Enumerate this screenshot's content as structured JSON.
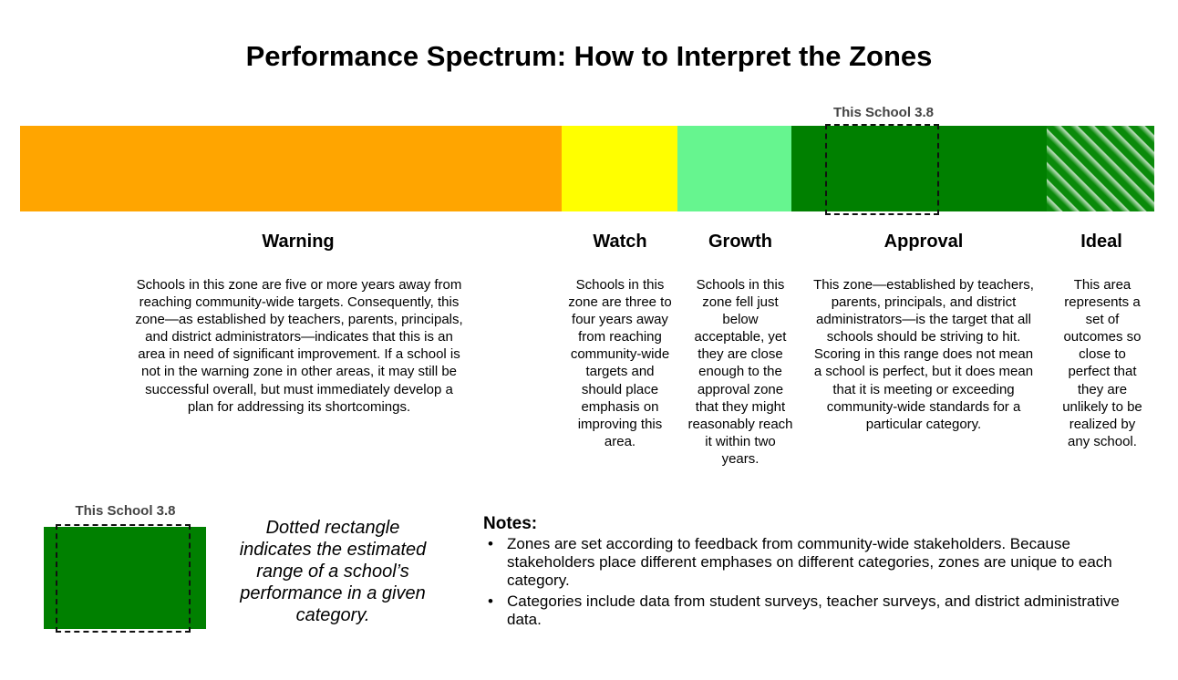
{
  "title": "Performance Spectrum: How to Interpret the Zones",
  "colors": {
    "warning": "#ffa500",
    "watch": "#ffff00",
    "growth": "#66f58f",
    "approval": "#008000",
    "ideal": "hatched-green"
  },
  "school_marker": {
    "label": "This School 3.8"
  },
  "zones": [
    {
      "name": "Warning",
      "description": "Schools in this zone are five or more years away from reaching community-wide targets. Consequently, this zone—as established by teachers, parents, principals, and district administrators—indicates that this is an area in need of significant improvement. If a school is not in the warning zone in other areas, it may still be successful overall, but must immediately develop a plan for addressing its shortcomings."
    },
    {
      "name": "Watch",
      "description": "Schools in this zone are three to four years away from reaching community-wide targets and should place emphasis on improving this area."
    },
    {
      "name": "Growth",
      "description": "Schools in this zone fell just below acceptable, yet they are close enough to the approval zone that they might reasonably reach it within two years."
    },
    {
      "name": "Approval",
      "description": "This zone—established by teachers, parents, principals, and district administrators—is the target that all schools should be striving to hit. Scoring in this range does not mean a school is perfect, but it does mean that it is meeting or exceeding community-wide standards for a particular category."
    },
    {
      "name": "Ideal",
      "description": "This area represents a set of outcomes so close to perfect that they are unlikely to be realized by any school."
    }
  ],
  "legend": {
    "label": "This School 3.8",
    "text": "Dotted rectangle indicates the estimated range of a school’s performance in a given category."
  },
  "notes": {
    "title": "Notes:",
    "items": [
      "Zones are set according to feedback from community-wide stakeholders. Because stakeholders place different emphases on different categories, zones are unique to each category.",
      "Categories include data from student surveys, teacher surveys, and district administrative data."
    ],
    "bullet": "•"
  }
}
